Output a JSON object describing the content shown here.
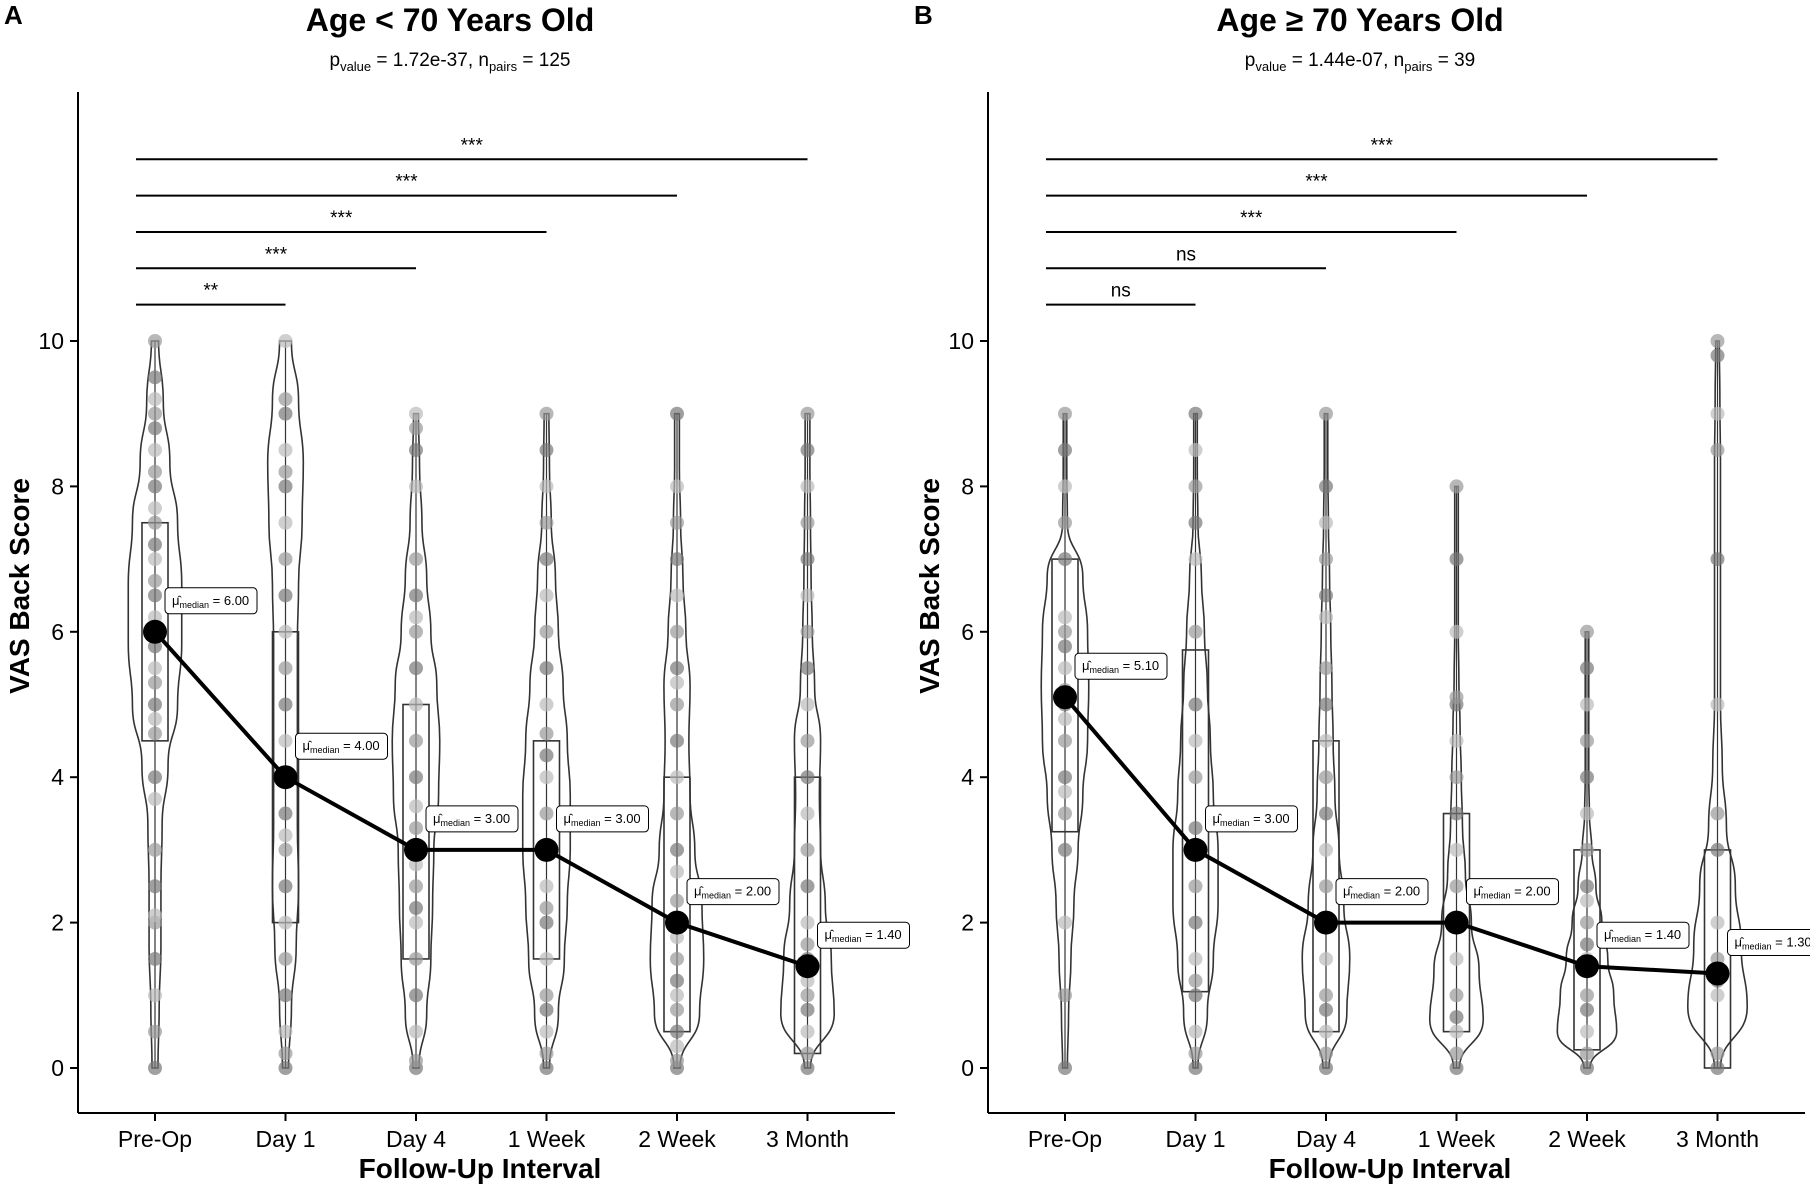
{
  "figure": {
    "xlabel": "Follow-Up Interval",
    "ylabel": "VAS Back Score"
  },
  "chart_data": [
    {
      "type": "violin",
      "panel_letter": "A",
      "title": "Age < 70 Years Old",
      "subtitle": {
        "p_label": "p",
        "p_sub": "value",
        "p_value": "1.72e-37",
        "n_label": "n",
        "n_sub": "pairs",
        "n_value": "125"
      },
      "xlabel": "Follow-Up Interval",
      "ylabel": "VAS Back Score",
      "categories": [
        "Pre-Op",
        "Day 1",
        "Day 4",
        "1 Week",
        "2 Week",
        "3 Month"
      ],
      "yticks": [
        0,
        2,
        4,
        6,
        8,
        10
      ],
      "ylim": [
        -0.6,
        13.5
      ],
      "medians": [
        6.0,
        4.0,
        3.0,
        3.0,
        2.0,
        1.4
      ],
      "median_labels": [
        "6.00",
        "4.00",
        "3.00",
        "3.00",
        "2.00",
        "1.40"
      ],
      "median_label_sub": "median",
      "boxes": [
        {
          "q1": 4.5,
          "q3": 7.5,
          "min": 0,
          "max": 10
        },
        {
          "q1": 2.0,
          "q3": 6.0,
          "min": 0,
          "max": 10
        },
        {
          "q1": 1.5,
          "q3": 5.0,
          "min": 0,
          "max": 9
        },
        {
          "q1": 1.5,
          "q3": 4.5,
          "min": 0,
          "max": 9
        },
        {
          "q1": 0.5,
          "q3": 4.0,
          "min": 0,
          "max": 9
        },
        {
          "q1": 0.2,
          "q3": 4.0,
          "min": 0,
          "max": 9
        }
      ],
      "violin_widths": [
        [
          0.05,
          0.07,
          0.1,
          0.1,
          0.12,
          0.22,
          0.38,
          0.45,
          0.45,
          0.38,
          0.25,
          0.14,
          0.06
        ],
        [
          0.05,
          0.1,
          0.18,
          0.22,
          0.2,
          0.2,
          0.2,
          0.2,
          0.22,
          0.28,
          0.3,
          0.22,
          0.1
        ],
        [
          0.05,
          0.18,
          0.25,
          0.28,
          0.3,
          0.38,
          0.4,
          0.35,
          0.25,
          0.18,
          0.1,
          0.06,
          0.04
        ],
        [
          0.05,
          0.2,
          0.3,
          0.35,
          0.4,
          0.4,
          0.35,
          0.28,
          0.2,
          0.15,
          0.08,
          0.05,
          0.04
        ],
        [
          0.05,
          0.38,
          0.45,
          0.42,
          0.3,
          0.22,
          0.2,
          0.22,
          0.15,
          0.1,
          0.06,
          0.04,
          0.04
        ],
        [
          0.05,
          0.45,
          0.4,
          0.3,
          0.22,
          0.2,
          0.22,
          0.12,
          0.08,
          0.06,
          0.05,
          0.04,
          0.04
        ]
      ],
      "points": [
        [
          0,
          0.5,
          1,
          1.5,
          2,
          2.1,
          2.5,
          3,
          3.7,
          4,
          4.6,
          4.8,
          5,
          5.3,
          5.5,
          5.8,
          6,
          6.2,
          6.5,
          6.7,
          7,
          7.2,
          7.5,
          7.7,
          8,
          8.2,
          8.5,
          8.8,
          9,
          9.2,
          9.5,
          10
        ],
        [
          0,
          0.2,
          0.5,
          1,
          1.5,
          2,
          2.5,
          3,
          3.2,
          3.5,
          4,
          4.5,
          5,
          5.5,
          6,
          6.5,
          7,
          7.5,
          8,
          8.2,
          8.5,
          9,
          9.2,
          10
        ],
        [
          0,
          0.1,
          0.5,
          1,
          1.5,
          2,
          2.2,
          2.5,
          2.8,
          3,
          3.3,
          3.6,
          4,
          4.5,
          5,
          5.5,
          6,
          6.2,
          6.5,
          7,
          8,
          8.5,
          8.8,
          9
        ],
        [
          0,
          0.2,
          0.5,
          0.8,
          1,
          1.5,
          2,
          2.2,
          2.5,
          3,
          3.5,
          4,
          4.3,
          4.6,
          5,
          5.5,
          6,
          6.5,
          7,
          7.5,
          8,
          8.5,
          9
        ],
        [
          0,
          0.1,
          0.3,
          0.5,
          0.8,
          1,
          1.2,
          1.5,
          1.8,
          2,
          2.3,
          2.7,
          3,
          3.5,
          4,
          4.5,
          5,
          5.3,
          5.5,
          6,
          6.5,
          7,
          7.5,
          8,
          9
        ],
        [
          0,
          0.2,
          0.5,
          0.8,
          1,
          1.2,
          1.5,
          1.7,
          2,
          2.5,
          3,
          3.5,
          4,
          4.5,
          5,
          5.5,
          6,
          6.5,
          7,
          7.5,
          8,
          8.5,
          9
        ]
      ],
      "comparisons": [
        {
          "from": 0,
          "to": 5,
          "y": 12.5,
          "label": "***"
        },
        {
          "from": 0,
          "to": 4,
          "y": 12.0,
          "label": "***"
        },
        {
          "from": 0,
          "to": 3,
          "y": 11.5,
          "label": "***"
        },
        {
          "from": 0,
          "to": 2,
          "y": 11.0,
          "label": "***"
        },
        {
          "from": 0,
          "to": 1,
          "y": 10.5,
          "label": "**"
        }
      ]
    },
    {
      "type": "violin",
      "panel_letter": "B",
      "title": "Age ≥ 70 Years Old",
      "subtitle": {
        "p_label": "p",
        "p_sub": "value",
        "p_value": "1.44e-07",
        "n_label": "n",
        "n_sub": "pairs",
        "n_value": "39"
      },
      "xlabel": "Follow-Up Interval",
      "ylabel": "VAS Back Score",
      "categories": [
        "Pre-Op",
        "Day 1",
        "Day 4",
        "1 Week",
        "2 Week",
        "3 Month"
      ],
      "yticks": [
        0,
        2,
        4,
        6,
        8,
        10
      ],
      "ylim": [
        -0.6,
        13.5
      ],
      "medians": [
        5.1,
        3.0,
        2.0,
        2.0,
        1.4,
        1.3
      ],
      "median_labels": [
        "5.10",
        "3.00",
        "2.00",
        "2.00",
        "1.40",
        "1.30"
      ],
      "median_label_sub": "median",
      "boxes": [
        {
          "q1": 3.25,
          "q3": 7.0,
          "min": 0,
          "max": 9
        },
        {
          "q1": 1.05,
          "q3": 5.75,
          "min": 0,
          "max": 9
        },
        {
          "q1": 0.5,
          "q3": 4.5,
          "min": 0,
          "max": 9
        },
        {
          "q1": 0.5,
          "q3": 3.5,
          "min": 0,
          "max": 8
        },
        {
          "q1": 0.25,
          "q3": 3.0,
          "min": 0,
          "max": 6
        },
        {
          "q1": 0.0,
          "q3": 3.0,
          "min": 0,
          "max": 10
        }
      ],
      "violin_widths": [
        [
          0.04,
          0.06,
          0.1,
          0.15,
          0.22,
          0.3,
          0.38,
          0.4,
          0.38,
          0.3,
          0.04,
          0.03,
          0.03
        ],
        [
          0.04,
          0.2,
          0.3,
          0.38,
          0.38,
          0.3,
          0.25,
          0.2,
          0.15,
          0.1,
          0.04,
          0.03,
          0.03
        ],
        [
          0.05,
          0.35,
          0.4,
          0.3,
          0.22,
          0.15,
          0.12,
          0.1,
          0.08,
          0.06,
          0.04,
          0.03,
          0.03
        ],
        [
          0.05,
          0.45,
          0.38,
          0.25,
          0.15,
          0.1,
          0.08,
          0.06,
          0.04,
          0.03,
          0.03,
          0.03,
          0.03
        ],
        [
          0.05,
          0.5,
          0.45,
          0.35,
          0.25,
          0.15,
          0.08,
          0.04,
          0.03,
          0.03,
          0.03,
          0.03,
          0.03
        ],
        [
          0.05,
          0.5,
          0.4,
          0.3,
          0.15,
          0.08,
          0.05,
          0.05,
          0.05,
          0.05,
          0.05,
          0.04,
          0.03
        ]
      ],
      "points": [
        [
          0,
          1,
          2,
          3,
          3.5,
          3.8,
          4,
          4.5,
          4.8,
          5,
          5.2,
          5.5,
          5.8,
          6,
          6.2,
          7,
          7.5,
          8,
          8.5,
          9
        ],
        [
          0,
          0.2,
          0.5,
          1,
          1.2,
          1.5,
          2,
          2.5,
          3,
          3.3,
          4,
          4.5,
          5,
          6,
          7,
          7.5,
          8,
          8.5,
          9
        ],
        [
          0,
          0.2,
          0.5,
          0.8,
          1,
          1.5,
          2,
          2.5,
          3,
          3.5,
          4,
          4.5,
          5,
          5.5,
          6.2,
          6.5,
          7,
          7.5,
          8,
          9
        ],
        [
          0,
          0.2,
          0.5,
          0.7,
          1,
          1.5,
          2,
          2.5,
          3,
          3.5,
          4,
          4.5,
          5,
          5.1,
          6,
          7,
          8
        ],
        [
          0,
          0.2,
          0.5,
          0.8,
          1,
          1.5,
          1.7,
          2,
          2.3,
          2.5,
          3,
          3.5,
          4,
          4.5,
          5,
          5.5,
          6
        ],
        [
          0,
          0.2,
          1,
          1.2,
          1.5,
          2,
          3,
          3.5,
          5,
          7,
          8.5,
          9,
          9.8,
          10
        ]
      ],
      "comparisons": [
        {
          "from": 0,
          "to": 5,
          "y": 12.5,
          "label": "***"
        },
        {
          "from": 0,
          "to": 4,
          "y": 12.0,
          "label": "***"
        },
        {
          "from": 0,
          "to": 3,
          "y": 11.5,
          "label": "***"
        },
        {
          "from": 0,
          "to": 2,
          "y": 11.0,
          "label": "ns"
        },
        {
          "from": 0,
          "to": 1,
          "y": 10.5,
          "label": "ns"
        }
      ]
    }
  ]
}
